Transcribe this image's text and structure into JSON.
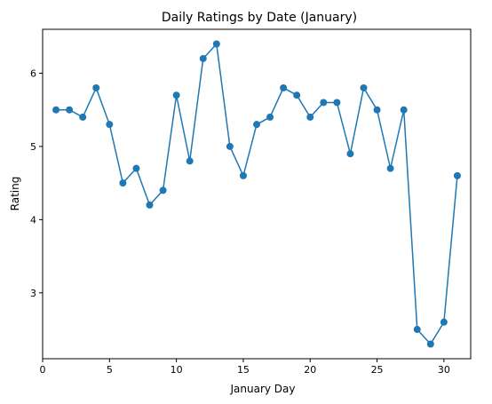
{
  "chart_data": {
    "type": "line",
    "title": "Daily Ratings by Date (January)",
    "xlabel": "January Day",
    "ylabel": "Rating",
    "xlim": [
      0,
      32
    ],
    "ylim": [
      2.1,
      6.6
    ],
    "xticks": [
      0,
      5,
      10,
      15,
      20,
      25,
      30
    ],
    "yticks": [
      3,
      4,
      5,
      6
    ],
    "grid": false,
    "legend": false,
    "series": [
      {
        "color": "#1f77b4",
        "marker": "circle",
        "x": [
          1,
          2,
          3,
          4,
          5,
          6,
          7,
          8,
          9,
          10,
          11,
          12,
          13,
          14,
          15,
          16,
          17,
          18,
          19,
          20,
          21,
          22,
          23,
          24,
          25,
          26,
          27,
          28,
          29,
          30,
          31
        ],
        "y": [
          5.5,
          5.5,
          5.4,
          5.8,
          5.3,
          4.5,
          4.7,
          4.2,
          4.4,
          5.7,
          4.8,
          6.2,
          6.4,
          5.0,
          4.6,
          5.3,
          5.4,
          5.8,
          5.7,
          5.4,
          5.6,
          5.6,
          4.9,
          5.8,
          5.5,
          4.7,
          5.5,
          2.5,
          2.3,
          2.6,
          4.6
        ]
      }
    ]
  }
}
